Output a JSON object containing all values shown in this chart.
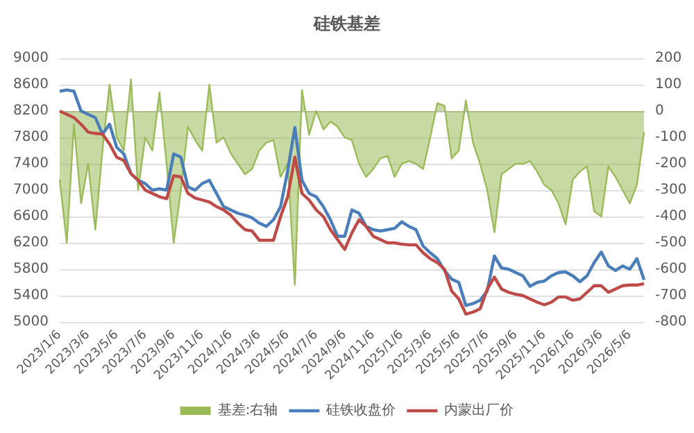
{
  "chart_data": {
    "type": "line",
    "title": "硅铁基差",
    "categories": [
      "2023/1/6",
      null,
      null,
      null,
      "2023/3/6",
      null,
      null,
      null,
      "2023/5/6",
      null,
      null,
      null,
      "2023/7/6",
      null,
      null,
      null,
      "2023/9/6",
      null,
      null,
      null,
      "2023/11/6",
      null,
      null,
      null,
      "2024/1/6",
      null,
      null,
      null,
      "2024/3/6",
      null,
      null,
      null,
      "2024/5/6",
      null,
      null,
      null,
      "2024/7/6",
      null,
      null,
      null,
      "2024/9/6",
      null,
      null,
      null,
      "2024/11/6",
      null,
      null,
      null,
      "2025/1/6",
      null,
      null,
      null,
      "2025/3/6",
      null,
      null,
      null,
      "2025/5/6",
      null,
      null,
      null,
      "2025/7/6",
      null,
      null,
      null,
      "2025/9/6",
      null,
      null,
      null,
      "2025/11/6",
      null,
      null,
      null,
      "2026/1/6",
      null,
      null,
      null,
      "2026/3/6",
      null,
      null,
      null,
      "2026/5/6",
      null,
      null
    ],
    "series": [
      {
        "name": "基差:右轴",
        "type": "area",
        "axis": "y2",
        "color": "#9bbb59",
        "values": [
          -260,
          -500,
          -50,
          -350,
          -200,
          -450,
          -150,
          100,
          -100,
          -150,
          120,
          -300,
          -100,
          -150,
          70,
          -200,
          -500,
          -300,
          -60,
          -110,
          -150,
          100,
          -120,
          -100,
          -160,
          -200,
          -240,
          -220,
          -150,
          -120,
          -110,
          -250,
          -200,
          -660,
          80,
          -90,
          0,
          -70,
          -40,
          -60,
          -100,
          -110,
          -200,
          -250,
          -220,
          -180,
          -170,
          -250,
          -200,
          -190,
          -200,
          -220,
          -100,
          30,
          20,
          -180,
          -150,
          40,
          -120,
          -200,
          -300,
          -460,
          -240,
          -220,
          -200,
          -200,
          -190,
          -230,
          -280,
          -300,
          -350,
          -430,
          -260,
          -230,
          -210,
          -380,
          -400,
          -210,
          -250,
          -300,
          -350,
          -280,
          -80
        ]
      },
      {
        "name": "硅铁收盘价",
        "color": "#4a7ebb",
        "values": [
          8500,
          8520,
          8500,
          8200,
          8150,
          8100,
          7850,
          8000,
          7650,
          7550,
          7250,
          7150,
          7100,
          7000,
          7020,
          7000,
          7550,
          7500,
          7050,
          7000,
          7100,
          7150,
          6950,
          6750,
          6700,
          6650,
          6620,
          6580,
          6500,
          6450,
          6550,
          6750,
          7300,
          7950,
          7150,
          6950,
          6900,
          6750,
          6550,
          6300,
          6300,
          6700,
          6650,
          6450,
          6400,
          6380,
          6400,
          6420,
          6520,
          6450,
          6400,
          6150,
          6050,
          5960,
          5780,
          5650,
          5600,
          5250,
          5280,
          5330,
          5470,
          6000,
          5820,
          5800,
          5750,
          5700,
          5540,
          5600,
          5620,
          5700,
          5750,
          5760,
          5700,
          5610,
          5700,
          5900,
          6060,
          5850,
          5780,
          5850,
          5800,
          5960,
          5640
        ]
      },
      {
        "name": "内蒙出厂价",
        "color": "#be4b48",
        "values": [
          8200,
          8150,
          8100,
          8000,
          7880,
          7860,
          7850,
          7700,
          7500,
          7450,
          7250,
          7150,
          7000,
          6950,
          6900,
          6870,
          7220,
          7200,
          6950,
          6880,
          6850,
          6820,
          6750,
          6700,
          6620,
          6500,
          6400,
          6380,
          6240,
          6240,
          6240,
          6600,
          6900,
          7500,
          6950,
          6850,
          6700,
          6600,
          6400,
          6250,
          6100,
          6350,
          6550,
          6450,
          6300,
          6250,
          6200,
          6200,
          6180,
          6170,
          6170,
          6050,
          5960,
          5900,
          5800,
          5470,
          5350,
          5120,
          5150,
          5200,
          5500,
          5680,
          5500,
          5450,
          5420,
          5400,
          5350,
          5300,
          5260,
          5300,
          5380,
          5380,
          5330,
          5350,
          5450,
          5550,
          5550,
          5450,
          5500,
          5550,
          5560,
          5560,
          5580
        ]
      }
    ],
    "ylim": [
      5000,
      9000
    ],
    "yticks": [
      5000,
      5400,
      5800,
      6200,
      6600,
      7000,
      7400,
      7800,
      8200,
      8600,
      9000
    ],
    "y2lim": [
      -800,
      200
    ],
    "y2ticks": [
      -800,
      -700,
      -600,
      -500,
      -400,
      -300,
      -200,
      -100,
      0,
      100,
      200
    ],
    "grid": "y",
    "legend": "bottom",
    "marker": "none",
    "line_style": "solid"
  }
}
